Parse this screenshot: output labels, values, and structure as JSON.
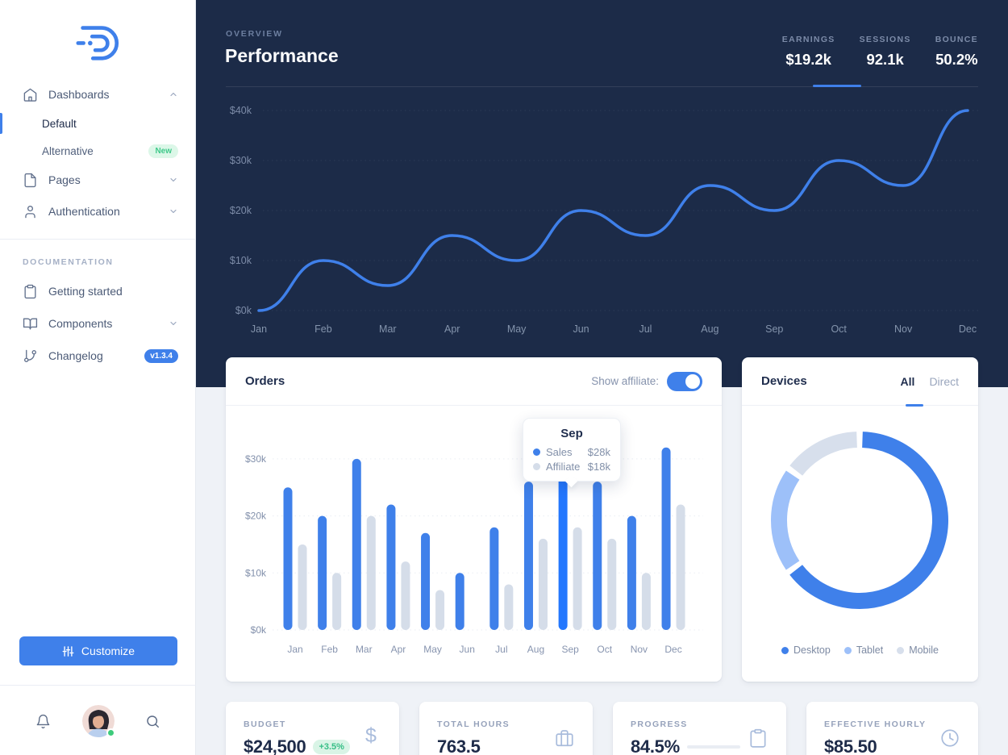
{
  "colors": {
    "accent": "#3F80EA",
    "highlight": "#2377FE",
    "affiliate": "#D5DDE9",
    "tablet": "#9DC0F9",
    "mobile": "#D7DFEC",
    "dark_bg": "#1C2B48",
    "green": "#3FC98A"
  },
  "sidebar": {
    "nav": [
      {
        "label": "Dashboards",
        "icon": "home-icon",
        "chevron": "up"
      },
      {
        "label": "Default",
        "active": true
      },
      {
        "label": "Alternative",
        "badge": "New"
      },
      {
        "label": "Pages",
        "icon": "file-icon",
        "chevron": "down"
      },
      {
        "label": "Authentication",
        "icon": "user-icon",
        "chevron": "down"
      }
    ],
    "section_label": "DOCUMENTATION",
    "docs": [
      {
        "label": "Getting started",
        "icon": "clipboard-icon"
      },
      {
        "label": "Components",
        "icon": "book-icon",
        "chevron": "down"
      },
      {
        "label": "Changelog",
        "icon": "git-branch-icon",
        "badge": "v1.3.4"
      }
    ],
    "customize_label": "Customize"
  },
  "header": {
    "eyebrow": "OVERVIEW",
    "title": "Performance",
    "stats": [
      {
        "label": "EARNINGS",
        "value": "$19.2k",
        "active": true
      },
      {
        "label": "SESSIONS",
        "value": "92.1k"
      },
      {
        "label": "BOUNCE",
        "value": "50.2%"
      }
    ]
  },
  "orders": {
    "title": "Orders",
    "toggle_label": "Show affiliate:",
    "toggle_on": true,
    "tooltip": {
      "month": "Sep",
      "rows": [
        {
          "label": "Sales",
          "value": "$28k"
        },
        {
          "label": "Affiliate",
          "value": "$18k"
        }
      ]
    }
  },
  "devices": {
    "title": "Devices",
    "tabs": [
      "All",
      "Direct"
    ],
    "active_tab": "All"
  },
  "kpis": [
    {
      "label": "BUDGET",
      "value": "$24,500",
      "badge": "+3.5%",
      "icon": "dollar-icon"
    },
    {
      "label": "TOTAL HOURS",
      "value": "763.5",
      "icon": "briefcase-icon"
    },
    {
      "label": "PROGRESS",
      "value": "84.5%",
      "progress": 84.5,
      "icon": "clipboard-icon"
    },
    {
      "label": "EFFECTIVE HOURLY",
      "value": "$85.50",
      "icon": "clock-icon"
    }
  ],
  "chart_data": [
    {
      "type": "line",
      "title": "Performance earnings by month",
      "categories": [
        "Jan",
        "Feb",
        "Mar",
        "Apr",
        "May",
        "Jun",
        "Jul",
        "Aug",
        "Sep",
        "Oct",
        "Nov",
        "Dec"
      ],
      "values": [
        0,
        10,
        5,
        15,
        10,
        20,
        15,
        25,
        20,
        30,
        25,
        40
      ],
      "units": "$k",
      "ylim": [
        0,
        40
      ],
      "yticks": [
        0,
        10,
        20,
        30,
        40
      ],
      "ytick_labels": [
        "$0k",
        "$10k",
        "$20k",
        "$30k",
        "$40k"
      ],
      "grid": "dotted",
      "line_color": "#3F80EA"
    },
    {
      "type": "bar",
      "title": "Orders by month",
      "categories": [
        "Jan",
        "Feb",
        "Mar",
        "Apr",
        "May",
        "Jun",
        "Jul",
        "Aug",
        "Sep",
        "Oct",
        "Nov",
        "Dec"
      ],
      "series": [
        {
          "name": "Sales",
          "values": [
            25,
            20,
            30,
            22,
            17,
            10,
            18,
            26,
            28,
            26,
            20,
            32
          ]
        },
        {
          "name": "Affiliate",
          "values": [
            15,
            10,
            20,
            12,
            7,
            0,
            8,
            16,
            18,
            16,
            10,
            22
          ]
        }
      ],
      "units": "$k",
      "ylim": [
        0,
        30
      ],
      "yticks": [
        0,
        10,
        20,
        30
      ],
      "ytick_labels": [
        "$0k",
        "$10k",
        "$20k",
        "$30k"
      ],
      "highlight_category": "Sep",
      "highlight_index": 8,
      "grid": "dotted"
    },
    {
      "type": "pie",
      "title": "Devices share",
      "labels": [
        "Desktop",
        "Tablet",
        "Mobile"
      ],
      "values": [
        65,
        20,
        15
      ],
      "units": "%",
      "colors": [
        "#3F80EA",
        "#9DC0F9",
        "#D7DFEC"
      ],
      "donut": true,
      "legend_position": "bottom"
    }
  ]
}
